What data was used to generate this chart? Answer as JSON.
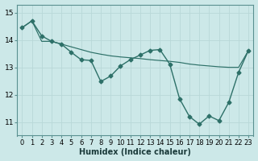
{
  "title": "",
  "xlabel": "Humidex (Indice chaleur)",
  "ylabel": "",
  "bg_color": "#cce8e8",
  "grid_color": "#b8d8d8",
  "line_color": "#2d7068",
  "line1_x": [
    0,
    1,
    2,
    3,
    4,
    5,
    6,
    7,
    8,
    9,
    10,
    11,
    12,
    13,
    14,
    15,
    16,
    17,
    18,
    19,
    20,
    21,
    22,
    23
  ],
  "line1_y": [
    14.45,
    14.7,
    14.15,
    13.95,
    13.85,
    13.55,
    13.28,
    13.25,
    12.48,
    12.68,
    13.05,
    13.28,
    13.45,
    13.62,
    13.65,
    13.12,
    11.85,
    11.2,
    10.92,
    11.22,
    11.05,
    11.72,
    12.82,
    13.62
  ],
  "line2_x": [
    0,
    1,
    2,
    3,
    4,
    5,
    6,
    7,
    8,
    9,
    10,
    11,
    12,
    13,
    14,
    15,
    16,
    17,
    18,
    19,
    20,
    21,
    22,
    23
  ],
  "line2_y": [
    14.45,
    14.7,
    13.95,
    13.95,
    13.85,
    13.75,
    13.65,
    13.55,
    13.48,
    13.42,
    13.38,
    13.35,
    13.32,
    13.28,
    13.25,
    13.22,
    13.18,
    13.12,
    13.08,
    13.05,
    13.02,
    13.0,
    13.0,
    13.62
  ],
  "ylim": [
    10.5,
    15.3
  ],
  "xlim": [
    -0.5,
    23.5
  ],
  "yticks": [
    11,
    12,
    13,
    14,
    15
  ],
  "xticks": [
    0,
    1,
    2,
    3,
    4,
    5,
    6,
    7,
    8,
    9,
    10,
    11,
    12,
    13,
    14,
    15,
    16,
    17,
    18,
    19,
    20,
    21,
    22,
    23
  ],
  "xtick_labels": [
    "0",
    "1",
    "2",
    "3",
    "4",
    "5",
    "6",
    "7",
    "8",
    "9",
    "10",
    "11",
    "12",
    "13",
    "14",
    "15",
    "16",
    "17",
    "18",
    "19",
    "20",
    "21",
    "22",
    "23"
  ],
  "marker": "D",
  "marker_size": 2.5,
  "linewidth": 1.0,
  "font_size": 6.5
}
